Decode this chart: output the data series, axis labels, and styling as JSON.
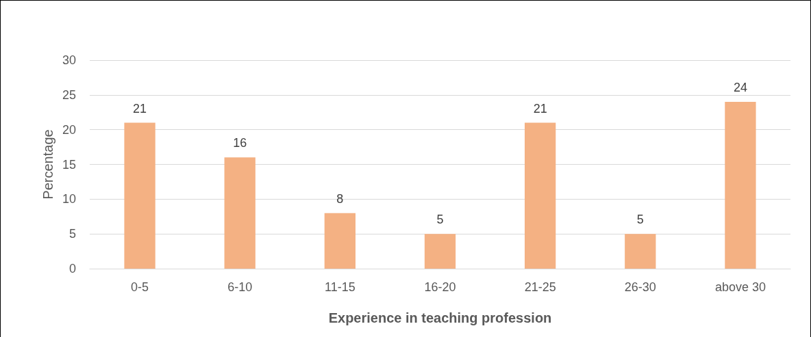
{
  "chart_data": {
    "type": "bar",
    "xlabel": "Experience in teaching profession",
    "ylabel": "Percentage",
    "categories": [
      "0-5",
      "6-10",
      "11-15",
      "16-20",
      "21-25",
      "26-30",
      "above 30"
    ],
    "values": [
      21,
      16,
      8,
      5,
      21,
      5,
      24
    ],
    "color": "#f4b183",
    "ylim": [
      0,
      30
    ],
    "yticks": [
      0,
      5,
      10,
      15,
      20,
      25,
      30
    ],
    "grid": "y",
    "data_labels": true
  }
}
